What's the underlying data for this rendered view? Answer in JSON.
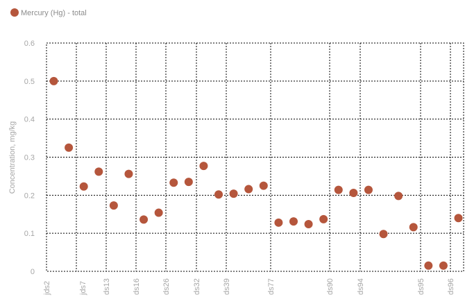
{
  "chart_data": {
    "type": "scatter",
    "legend": {
      "position": "top-left"
    },
    "ylabel": "Concentration, mg/kg",
    "xlabel": "",
    "ylim": [
      0,
      0.6
    ],
    "yticks": [
      "0",
      "0.1",
      "0.2",
      "0.3",
      "0.4",
      "0.5",
      "0.6"
    ],
    "grid": true,
    "x_tick_labels": [
      "jds2",
      "jds7",
      "ds13",
      "ds16",
      "ds26",
      "ds32",
      "ds39",
      "ds77",
      "ds90",
      "ds94",
      "ds95",
      "ds96"
    ],
    "series": [
      {
        "name": "Mercury (Hg) - total",
        "color": "#b5563c",
        "values": [
          0.5,
          0.325,
          0.223,
          0.262,
          0.173,
          0.256,
          0.136,
          0.154,
          0.233,
          0.235,
          0.277,
          0.202,
          0.204,
          0.216,
          0.225,
          0.128,
          0.131,
          0.124,
          0.137,
          0.214,
          0.206,
          0.214,
          0.098,
          0.198,
          0.116,
          0.015,
          0.015,
          0.14
        ]
      }
    ]
  }
}
